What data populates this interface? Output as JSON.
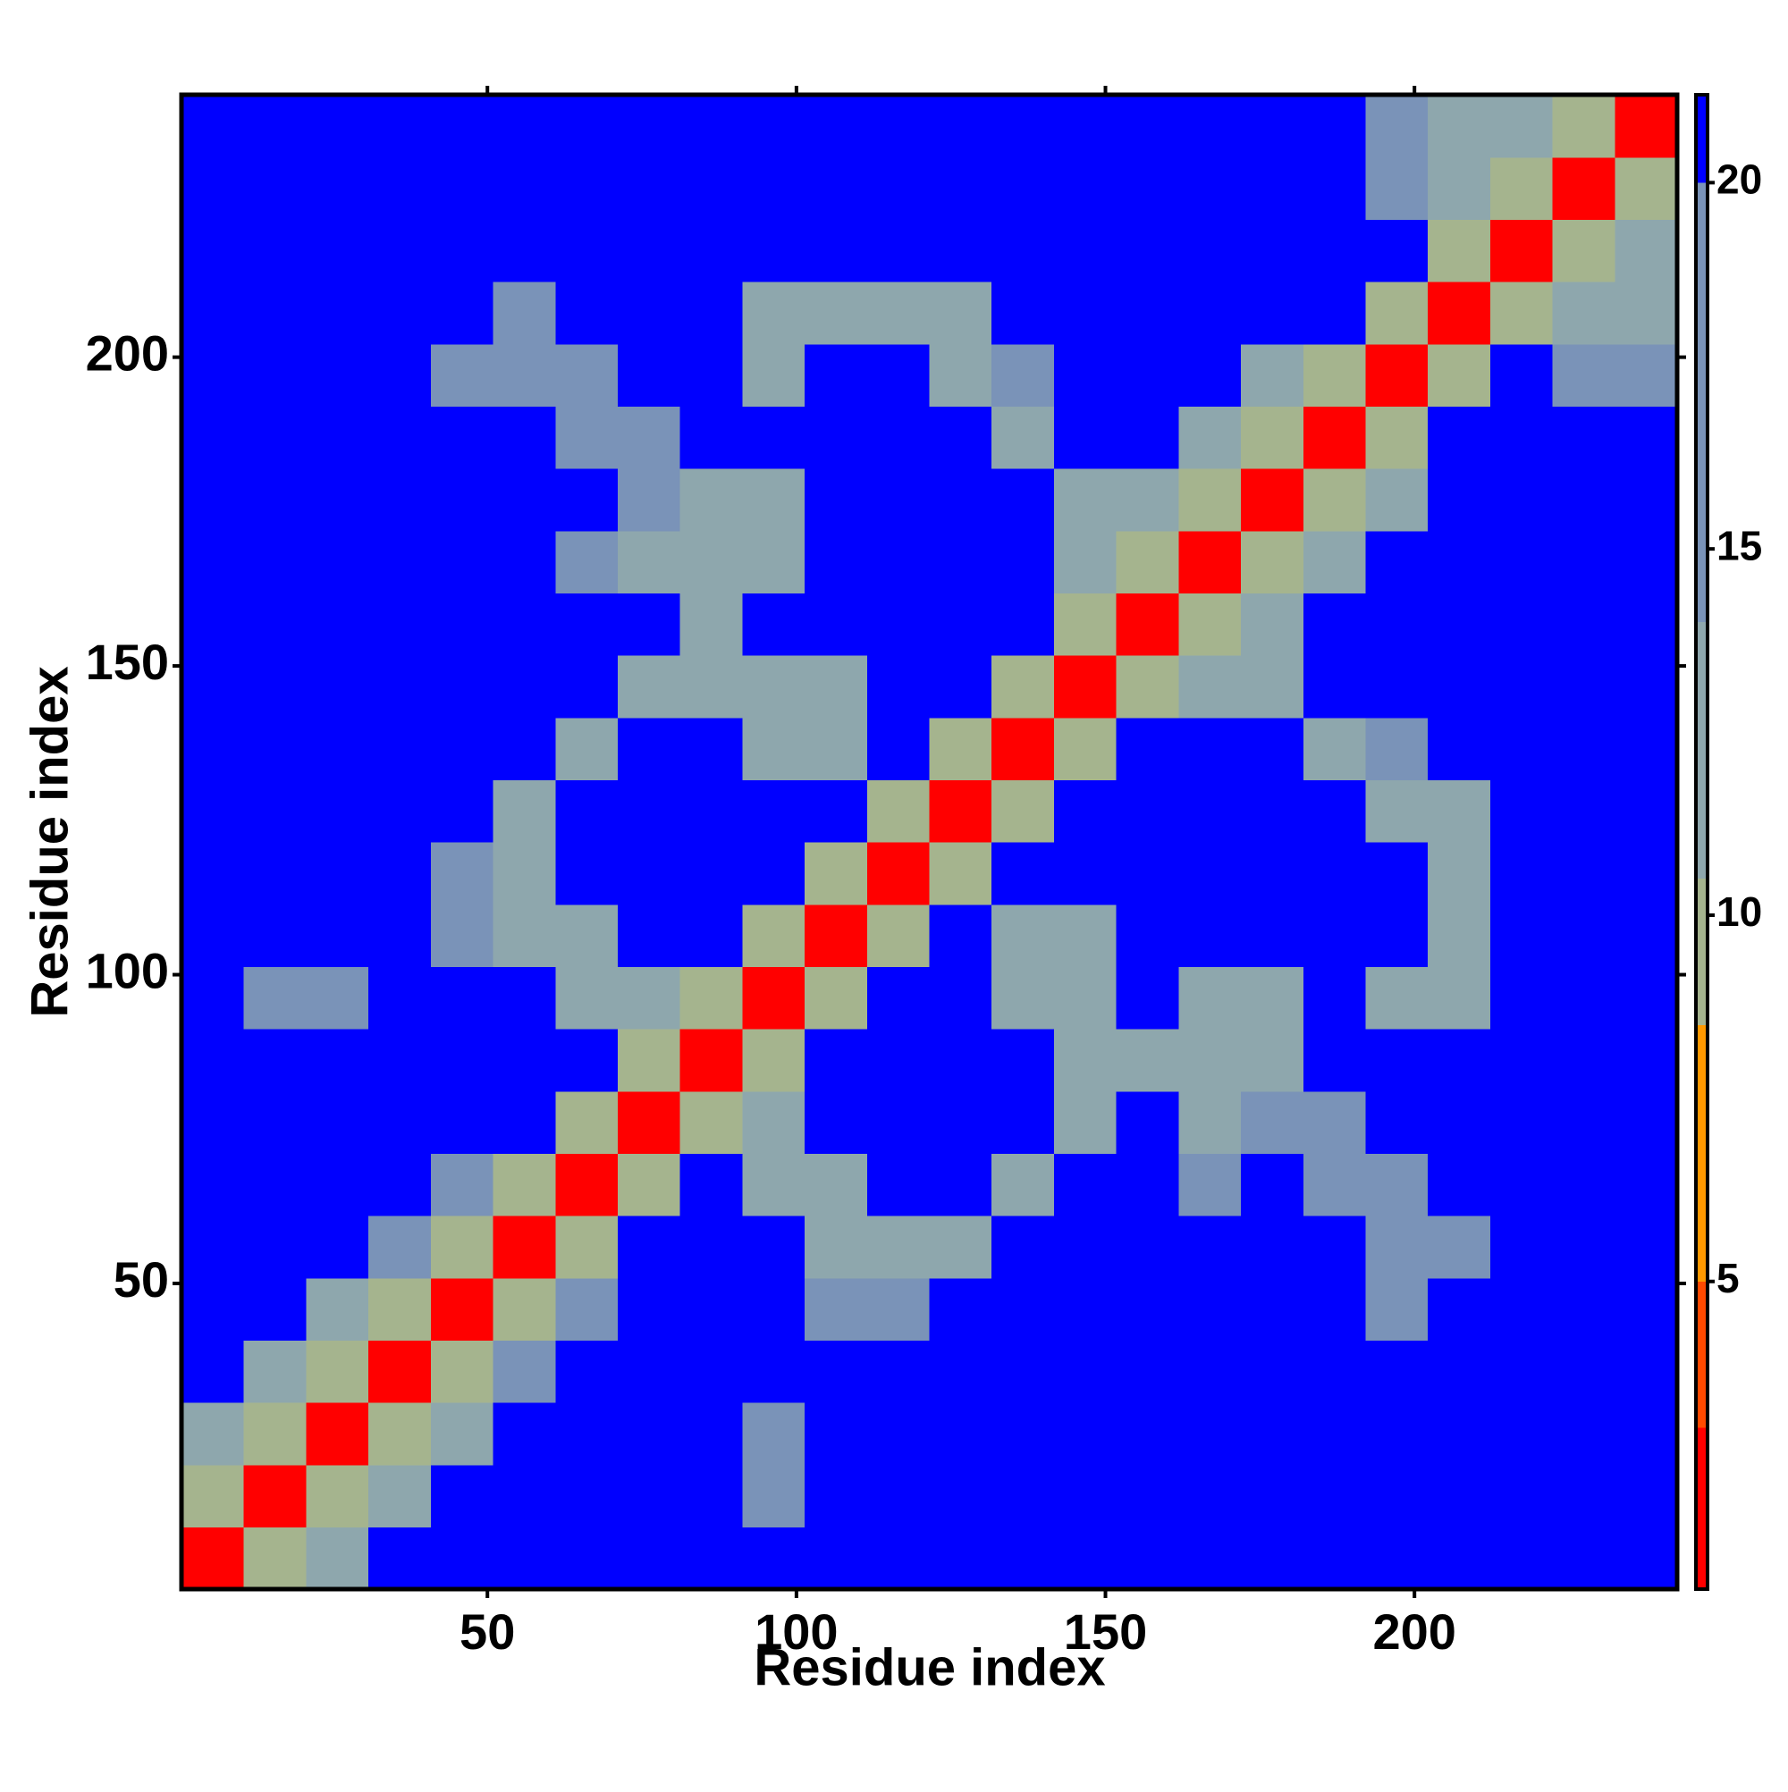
{
  "chart_data": {
    "type": "heatmap",
    "xlabel": "Residue index",
    "ylabel": "Residue index",
    "xlim": [
      0.5,
      242.5
    ],
    "ylim": [
      0.5,
      242.5
    ],
    "xticks": [
      50,
      100,
      150,
      200
    ],
    "yticks": [
      50,
      100,
      150,
      200
    ],
    "clim": [
      0.8,
      21.2
    ],
    "cticks": [
      5,
      10,
      15,
      20
    ],
    "colorscale": [
      {
        "value": 3,
        "color": "#ff0000"
      },
      {
        "value": 5,
        "color": "#ff4a00"
      },
      {
        "value": 8.5,
        "color": "#ff9900"
      },
      {
        "value": 10.5,
        "color": "#a5b48e"
      },
      {
        "value": 14,
        "color": "#8ea7ad"
      },
      {
        "value": 20,
        "color": "#7a93b8"
      },
      {
        "value": 21.2,
        "color": "#0000ff"
      }
    ],
    "z": [
      [
        2.5,
        9.5,
        14,
        21.5,
        21.5,
        21.5,
        21.5,
        21.5,
        21.5,
        21.5,
        21.5,
        21.5,
        21.5,
        21.5,
        21.5,
        21.5,
        21.5,
        21.5,
        21.5,
        21.5,
        21.5,
        21.5,
        21.5,
        21.5
      ],
      [
        9.5,
        2.5,
        9.5,
        14,
        21.5,
        21.5,
        21.5,
        21.5,
        21.5,
        16,
        21.5,
        21.5,
        21.5,
        21.5,
        21.5,
        21.5,
        21.5,
        21.5,
        21.5,
        21.5,
        21.5,
        21.5,
        21.5,
        21.5
      ],
      [
        14,
        9.5,
        2.5,
        9.5,
        14,
        21.5,
        21.5,
        21.5,
        21.5,
        16,
        21.5,
        21.5,
        21.5,
        21.5,
        21.5,
        21.5,
        21.5,
        21.5,
        21.5,
        21.5,
        21.5,
        21.5,
        21.5,
        21.5
      ],
      [
        21.5,
        14,
        9.5,
        2.5,
        9.5,
        15,
        21.5,
        21.5,
        21.5,
        21.5,
        21.5,
        21.5,
        21.5,
        21.5,
        21.5,
        21.5,
        21.5,
        21.5,
        21.5,
        21.5,
        21.5,
        21.5,
        21.5,
        21.5
      ],
      [
        21.5,
        21.5,
        14,
        9.5,
        2.5,
        9.5,
        15,
        21.5,
        21.5,
        21.5,
        17,
        17,
        21.5,
        21.5,
        21.5,
        21.5,
        21.5,
        21.5,
        21.5,
        18,
        21.5,
        21.5,
        21.5,
        21.5
      ],
      [
        21.5,
        21.5,
        21.5,
        15,
        9.5,
        2.5,
        9.5,
        21.5,
        21.5,
        21.5,
        12,
        12,
        11,
        21.5,
        21.5,
        21.5,
        21.5,
        21.5,
        21.5,
        17,
        18,
        21.5,
        21.5,
        21.5
      ],
      [
        21.5,
        21.5,
        21.5,
        21.5,
        15,
        9.5,
        2.5,
        9.5,
        21.5,
        12,
        12,
        21.5,
        21.5,
        11,
        21.5,
        21.5,
        16,
        21.5,
        17,
        17,
        21.5,
        21.5,
        21.5,
        21.5
      ],
      [
        21.5,
        21.5,
        21.5,
        21.5,
        21.5,
        21.5,
        9.5,
        2.5,
        9.5,
        12,
        21.5,
        21.5,
        21.5,
        21.5,
        11,
        21.5,
        14,
        15,
        18,
        21.5,
        21.5,
        21.5,
        21.5,
        21.5
      ],
      [
        21.5,
        21.5,
        21.5,
        21.5,
        21.5,
        21.5,
        21.5,
        9.5,
        2.5,
        9.5,
        21.5,
        21.5,
        21.5,
        21.5,
        13,
        11,
        12,
        13,
        21.5,
        21.5,
        21.5,
        21.5,
        21.5,
        21.5
      ],
      [
        21.5,
        16,
        16,
        21.5,
        21.5,
        21.5,
        12,
        12,
        9.5,
        2.5,
        9.5,
        21.5,
        21.5,
        14,
        11,
        21.5,
        13,
        14,
        21.5,
        14,
        14,
        21.5,
        21.5,
        21.5
      ],
      [
        21.5,
        21.5,
        21.5,
        21.5,
        17,
        12,
        12,
        21.5,
        21.5,
        9.5,
        2.5,
        9.5,
        21.5,
        11,
        14,
        21.5,
        21.5,
        21.5,
        21.5,
        21.5,
        12,
        21.5,
        21.5,
        21.5
      ],
      [
        21.5,
        21.5,
        21.5,
        21.5,
        17,
        12,
        21.5,
        21.5,
        21.5,
        21.5,
        9.5,
        2.5,
        9.5,
        21.5,
        21.5,
        21.5,
        21.5,
        21.5,
        21.5,
        21.5,
        12,
        21.5,
        21.5,
        21.5
      ],
      [
        21.5,
        21.5,
        21.5,
        21.5,
        21.5,
        11,
        21.5,
        21.5,
        21.5,
        21.5,
        21.5,
        9.5,
        2.5,
        9.5,
        21.5,
        21.5,
        21.5,
        21.5,
        21.5,
        12,
        13,
        21.5,
        21.5,
        21.5
      ],
      [
        21.5,
        21.5,
        21.5,
        21.5,
        21.5,
        21.5,
        11,
        21.5,
        21.5,
        14,
        11,
        21.5,
        9.5,
        2.5,
        9.5,
        21.5,
        21.5,
        21.5,
        12,
        15,
        21.5,
        21.5,
        21.5,
        21.5
      ],
      [
        21.5,
        21.5,
        21.5,
        21.5,
        21.5,
        21.5,
        21.5,
        11,
        13,
        11,
        14,
        21.5,
        21.5,
        9.5,
        2.5,
        9.5,
        12,
        12,
        21.5,
        21.5,
        21.5,
        21.5,
        21.5,
        21.5
      ],
      [
        21.5,
        21.5,
        21.5,
        21.5,
        21.5,
        21.5,
        21.5,
        21.5,
        11,
        21.5,
        21.5,
        21.5,
        21.5,
        21.5,
        9.5,
        2.5,
        9.5,
        13,
        21.5,
        21.5,
        21.5,
        21.5,
        21.5,
        21.5
      ],
      [
        21.5,
        21.5,
        21.5,
        21.5,
        21.5,
        21.5,
        16,
        14,
        12,
        13,
        21.5,
        21.5,
        21.5,
        21.5,
        12,
        9.5,
        2.5,
        9.5,
        13,
        21.5,
        21.5,
        21.5,
        21.5,
        21.5
      ],
      [
        21.5,
        21.5,
        21.5,
        21.5,
        21.5,
        21.5,
        21.5,
        15,
        13,
        14,
        21.5,
        21.5,
        21.5,
        21.5,
        12,
        13,
        9.5,
        2.5,
        9.5,
        13,
        21.5,
        21.5,
        21.5,
        21.5
      ],
      [
        21.5,
        21.5,
        21.5,
        21.5,
        21.5,
        21.5,
        17,
        18,
        21.5,
        21.5,
        21.5,
        21.5,
        21.5,
        12,
        21.5,
        21.5,
        13,
        9.5,
        2.5,
        9.5,
        21.5,
        21.5,
        21.5,
        21.5
      ],
      [
        21.5,
        21.5,
        21.5,
        21.5,
        18,
        17,
        17,
        21.5,
        21.5,
        14,
        21.5,
        21.5,
        12,
        15,
        21.5,
        21.5,
        21.5,
        13,
        9.5,
        2.5,
        9.5,
        21.5,
        16,
        17
      ],
      [
        21.5,
        21.5,
        21.5,
        21.5,
        21.5,
        18,
        21.5,
        21.5,
        21.5,
        14,
        12,
        12,
        13,
        21.5,
        21.5,
        21.5,
        21.5,
        21.5,
        21.5,
        9.5,
        2.5,
        9.5,
        12,
        12
      ],
      [
        21.5,
        21.5,
        21.5,
        21.5,
        21.5,
        21.5,
        21.5,
        21.5,
        21.5,
        21.5,
        21.5,
        21.5,
        21.5,
        21.5,
        21.5,
        21.5,
        21.5,
        21.5,
        21.5,
        21.5,
        9.5,
        2.5,
        9.5,
        11
      ],
      [
        21.5,
        21.5,
        21.5,
        21.5,
        21.5,
        21.5,
        21.5,
        21.5,
        21.5,
        21.5,
        21.5,
        21.5,
        21.5,
        21.5,
        21.5,
        21.5,
        21.5,
        21.5,
        21.5,
        16,
        12,
        9.5,
        2.5,
        9.5
      ],
      [
        21.5,
        21.5,
        21.5,
        21.5,
        21.5,
        21.5,
        21.5,
        21.5,
        21.5,
        21.5,
        21.5,
        21.5,
        21.5,
        21.5,
        21.5,
        21.5,
        21.5,
        21.5,
        21.5,
        17,
        12,
        11,
        9.5,
        2.5
      ]
    ]
  }
}
